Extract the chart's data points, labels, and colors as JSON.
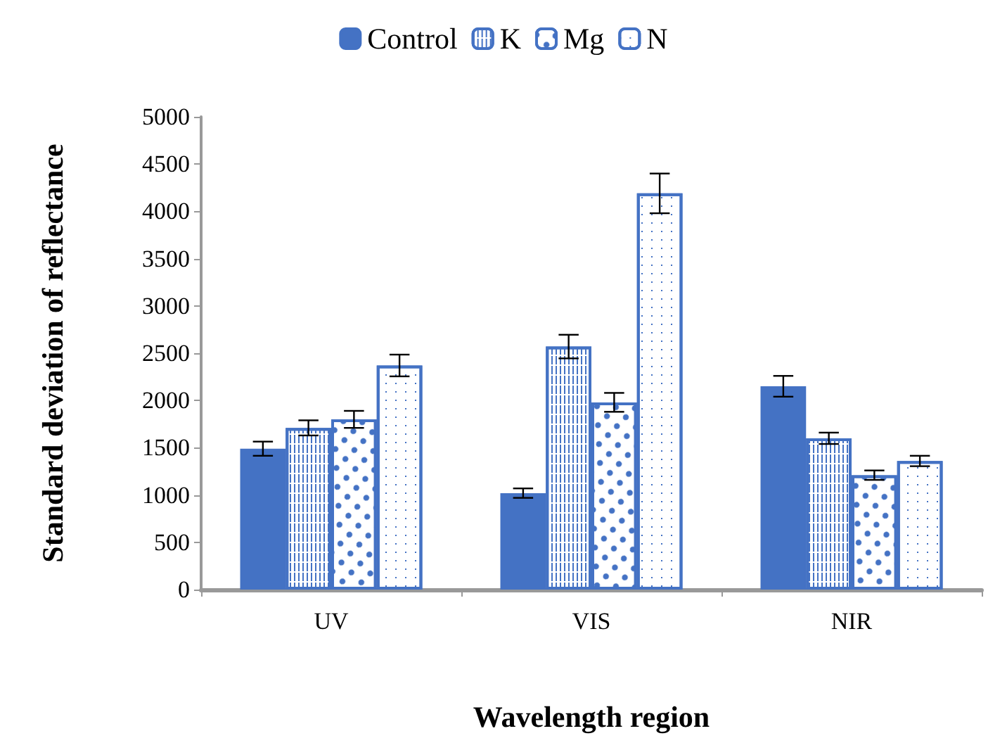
{
  "chart_data": {
    "type": "bar",
    "xlabel": "Wavelength region",
    "ylabel": "Standard deviation of reflectance",
    "categories": [
      "UV",
      "VIS",
      "NIR"
    ],
    "series": [
      {
        "name": "Control",
        "color": "#4472c4",
        "values": [
          1490,
          1020,
          2150
        ],
        "errors": [
          75,
          50,
          110
        ]
      },
      {
        "name": "K",
        "color": "#4472c4",
        "values": [
          1710,
          2570,
          1600
        ],
        "errors": [
          80,
          125,
          60
        ]
      },
      {
        "name": "Mg",
        "color": "#4472c4",
        "values": [
          1800,
          1980,
          1210
        ],
        "errors": [
          90,
          100,
          50
        ]
      },
      {
        "name": "N",
        "color": "#4472c4",
        "values": [
          2370,
          4190,
          1360
        ],
        "errors": [
          115,
          210,
          55
        ]
      }
    ],
    "ylim": [
      0,
      5000
    ],
    "yticks": [
      0,
      500,
      1000,
      1500,
      2000,
      2500,
      3000,
      3500,
      4000,
      4500,
      5000
    ],
    "grid": false,
    "legend": "top"
  }
}
